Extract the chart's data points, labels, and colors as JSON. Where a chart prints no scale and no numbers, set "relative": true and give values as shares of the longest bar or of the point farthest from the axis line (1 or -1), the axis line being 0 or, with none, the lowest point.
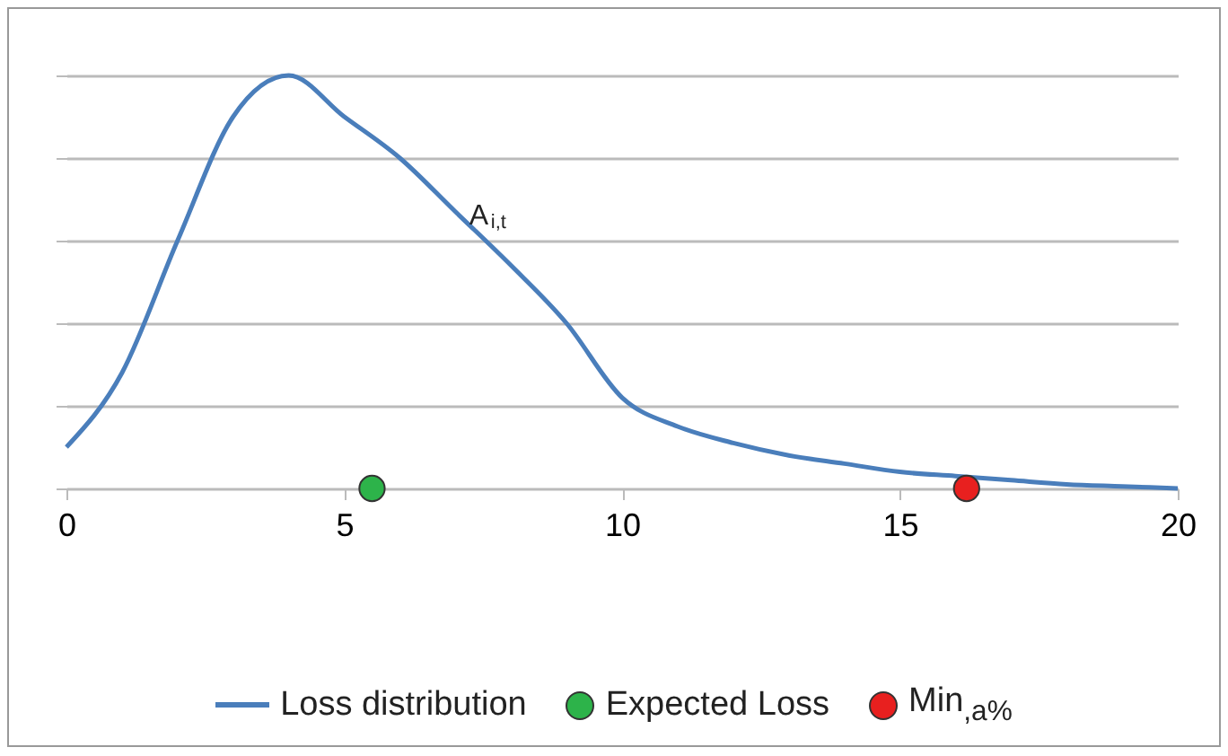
{
  "chart_data": {
    "type": "line",
    "relative": true,
    "xlim": [
      0,
      20
    ],
    "xticks": [
      0,
      5,
      10,
      15,
      20
    ],
    "grid": "y",
    "legend": "bottom",
    "marker": "none",
    "annotations": [
      {
        "text": "A$_{i,t}$",
        "x": 7.25,
        "y": 0.66
      }
    ],
    "series": [
      {
        "name": "Loss distribution",
        "color": "#4a7ebb",
        "x": [
          0,
          1,
          2,
          3,
          4,
          5,
          6,
          7,
          8,
          9,
          10,
          11,
          12,
          13,
          14,
          15,
          16,
          17,
          18,
          19,
          20
        ],
        "values": [
          0.1,
          0.28,
          0.6,
          0.9,
          1,
          0.9,
          0.8,
          0.67,
          0.54,
          0.4,
          0.22,
          0.15,
          0.11,
          0.08,
          0.06,
          0.04,
          0.03,
          0.02,
          0.01,
          0.005,
          0
        ]
      },
      {
        "name": "Expected Loss",
        "type": "scatter",
        "marker": "circle",
        "color": "#2db34a",
        "x": [
          5.5
        ],
        "values": [
          0
        ]
      },
      {
        "name": "Min$_{,a%}$",
        "type": "scatter",
        "marker": "circle",
        "color": "#e8201f",
        "x": [
          16.2
        ],
        "values": [
          0
        ]
      }
    ]
  }
}
